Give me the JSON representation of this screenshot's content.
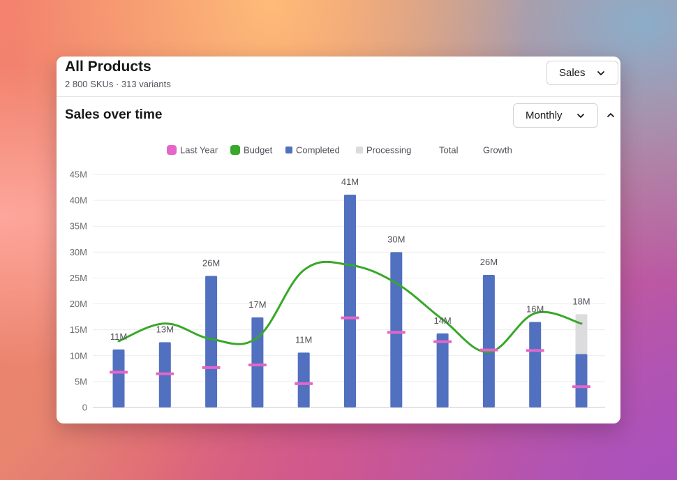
{
  "header": {
    "title": "All Products",
    "subtitle": "2 800 SKUs · 313 variants",
    "metric_select": "Sales"
  },
  "section": {
    "title": "Sales over time",
    "period_select": "Monthly"
  },
  "colors": {
    "completed": "#5170bf",
    "processing": "#dcdcdf",
    "last_year": "#e565c8",
    "budget": "#38a829",
    "grid": "#ececef",
    "axis": "#c8c8cc"
  },
  "chart_data": {
    "type": "bar",
    "title": "Sales over time",
    "xlabel": "",
    "ylabel": "",
    "ylim": [
      0,
      45
    ],
    "y_unit": "M",
    "yticks": [
      "0",
      "5M",
      "10M",
      "15M",
      "20M",
      "25M",
      "30M",
      "35M",
      "40M",
      "45M"
    ],
    "grid": true,
    "legend": [
      {
        "name": "Last Year",
        "swatch": "last_year"
      },
      {
        "name": "Budget",
        "swatch": "budget"
      },
      {
        "name": "Completed",
        "swatch": "completed"
      },
      {
        "name": "Processing",
        "swatch": "processing"
      },
      {
        "name": "Total",
        "swatch": "none"
      },
      {
        "name": "Growth",
        "swatch": "none"
      }
    ],
    "total_labels": [
      "11M",
      "13M",
      "26M",
      "17M",
      "11M",
      "41M",
      "30M",
      "14M",
      "26M",
      "16M",
      "18M"
    ],
    "series": [
      {
        "name": "Completed",
        "kind": "bar",
        "values": [
          11.2,
          12.6,
          25.4,
          17.4,
          10.6,
          41.1,
          30.0,
          14.3,
          25.6,
          16.5,
          10.3
        ]
      },
      {
        "name": "Processing",
        "kind": "bar-stacked",
        "values": [
          0,
          0,
          0,
          0,
          0,
          0,
          0,
          0,
          0,
          0,
          7.7
        ]
      },
      {
        "name": "Last Year",
        "kind": "marker",
        "values": [
          6.8,
          6.5,
          7.7,
          8.2,
          4.6,
          17.3,
          14.5,
          12.7,
          11.1,
          11.0,
          4.0
        ]
      },
      {
        "name": "Budget",
        "kind": "line",
        "values": [
          12.8,
          16.2,
          13.2,
          13.5,
          26.5,
          27.5,
          24.0,
          17.0,
          10.7,
          18.2,
          16.2
        ]
      }
    ]
  }
}
